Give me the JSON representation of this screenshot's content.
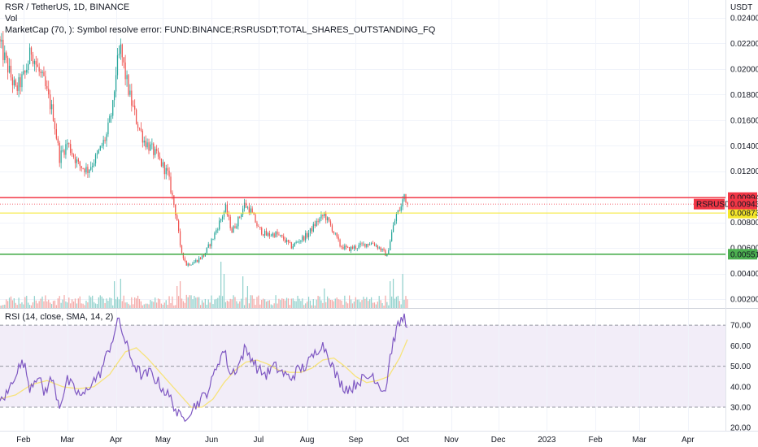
{
  "header": {
    "symbol_line": "RSR / TetherUS, 1D, BINANCE",
    "vol_label": "Vol",
    "marketcap_line": "MarketCap (70, ): Symbol resolve error: FUND:BINANCE;RSRUSDT;TOTAL_SHARES_OUTSTANDING_FQ"
  },
  "rsi_panel": {
    "label": "RSI (14, close, SMA, 14, 2)"
  },
  "colors": {
    "up": "#26a69a",
    "down": "#ef5350",
    "up_vol": "#93d2cd",
    "down_vol": "#f4a9a7",
    "resistance": "#f23645",
    "middle": "#f5e72a",
    "support": "#4caf50",
    "rsi_line": "#7e57c2",
    "rsi_ma": "#f7e37b",
    "rsi_band": "#ede7f6",
    "price_tag": "#f23645"
  },
  "chart_data": [
    {
      "type": "candlestick",
      "title": "RSR / TetherUS, 1D, BINANCE",
      "y_unit": "USDT",
      "y_scale": "linear",
      "ylim": [
        0.0013,
        0.0254
      ],
      "y_ticks": [
        "0.02400",
        "0.02200",
        "0.02000",
        "0.01800",
        "0.01600",
        "0.01400",
        "0.01200",
        "0.00800",
        "0.00600",
        "0.00400",
        "0.00200"
      ],
      "x_ticks": [
        "Feb",
        "Mar",
        "Apr",
        "May",
        "Jun",
        "Jul",
        "Aug",
        "Sep",
        "Oct",
        "Nov",
        "Dec",
        "2023",
        "Feb",
        "Mar",
        "Apr"
      ],
      "x_range": [
        "2022-01-17",
        "2023-04-25"
      ],
      "grid": true,
      "horizontal_levels": [
        {
          "label": "0.00994",
          "value": 0.00994,
          "role": "resistance"
        },
        {
          "label": "0.00873",
          "value": 0.00873,
          "role": "middle"
        },
        {
          "label": "0.00551",
          "value": 0.00551,
          "role": "support"
        }
      ],
      "last_price": {
        "name": "RSRUSDT",
        "label": "0.00943",
        "value": 0.00943
      },
      "series_close_anchors": [
        {
          "date": "2022-01-17",
          "close": 0.0219
        },
        {
          "date": "2022-01-22",
          "close": 0.0201
        },
        {
          "date": "2022-01-27",
          "close": 0.0183
        },
        {
          "date": "2022-02-02",
          "close": 0.0196
        },
        {
          "date": "2022-02-06",
          "close": 0.0215
        },
        {
          "date": "2022-02-10",
          "close": 0.02
        },
        {
          "date": "2022-02-14",
          "close": 0.0189
        },
        {
          "date": "2022-02-20",
          "close": 0.0164
        },
        {
          "date": "2022-02-24",
          "close": 0.0131
        },
        {
          "date": "2022-03-01",
          "close": 0.0142
        },
        {
          "date": "2022-03-08",
          "close": 0.0125
        },
        {
          "date": "2022-03-14",
          "close": 0.0121
        },
        {
          "date": "2022-03-20",
          "close": 0.0132
        },
        {
          "date": "2022-03-26",
          "close": 0.0148
        },
        {
          "date": "2022-03-30",
          "close": 0.017
        },
        {
          "date": "2022-04-01",
          "close": 0.0198
        },
        {
          "date": "2022-04-04",
          "close": 0.0215
        },
        {
          "date": "2022-04-07",
          "close": 0.0195
        },
        {
          "date": "2022-04-10",
          "close": 0.0178
        },
        {
          "date": "2022-04-14",
          "close": 0.016
        },
        {
          "date": "2022-04-19",
          "close": 0.0144
        },
        {
          "date": "2022-04-24",
          "close": 0.0137
        },
        {
          "date": "2022-04-29",
          "close": 0.0128
        },
        {
          "date": "2022-05-04",
          "close": 0.0118
        },
        {
          "date": "2022-05-07",
          "close": 0.01
        },
        {
          "date": "2022-05-10",
          "close": 0.0082
        },
        {
          "date": "2022-05-12",
          "close": 0.006
        },
        {
          "date": "2022-05-16",
          "close": 0.0047
        },
        {
          "date": "2022-05-21",
          "close": 0.0049
        },
        {
          "date": "2022-05-27",
          "close": 0.0054
        },
        {
          "date": "2022-06-02",
          "close": 0.0068
        },
        {
          "date": "2022-06-06",
          "close": 0.008
        },
        {
          "date": "2022-06-10",
          "close": 0.0091
        },
        {
          "date": "2022-06-14",
          "close": 0.0073
        },
        {
          "date": "2022-06-18",
          "close": 0.0082
        },
        {
          "date": "2022-06-22",
          "close": 0.0094
        },
        {
          "date": "2022-06-26",
          "close": 0.0089
        },
        {
          "date": "2022-07-01",
          "close": 0.0075
        },
        {
          "date": "2022-07-06",
          "close": 0.007
        },
        {
          "date": "2022-07-12",
          "close": 0.0071
        },
        {
          "date": "2022-07-17",
          "close": 0.0067
        },
        {
          "date": "2022-07-22",
          "close": 0.0061
        },
        {
          "date": "2022-07-27",
          "close": 0.0066
        },
        {
          "date": "2022-08-01",
          "close": 0.007
        },
        {
          "date": "2022-08-07",
          "close": 0.008
        },
        {
          "date": "2022-08-12",
          "close": 0.0086
        },
        {
          "date": "2022-08-17",
          "close": 0.0075
        },
        {
          "date": "2022-08-22",
          "close": 0.0062
        },
        {
          "date": "2022-08-27",
          "close": 0.0059
        },
        {
          "date": "2022-09-02",
          "close": 0.0061
        },
        {
          "date": "2022-09-07",
          "close": 0.0063
        },
        {
          "date": "2022-09-12",
          "close": 0.0064
        },
        {
          "date": "2022-09-17",
          "close": 0.0059
        },
        {
          "date": "2022-09-21",
          "close": 0.0054
        },
        {
          "date": "2022-09-24",
          "close": 0.0072
        },
        {
          "date": "2022-09-27",
          "close": 0.0086
        },
        {
          "date": "2022-09-30",
          "close": 0.0092
        },
        {
          "date": "2022-10-02",
          "close": 0.0102
        },
        {
          "date": "2022-10-04",
          "close": 0.00943
        }
      ]
    },
    {
      "type": "bar",
      "title": "Vol",
      "volume_spikes": [
        {
          "date": "2022-03-31",
          "relative": 0.55
        },
        {
          "date": "2022-04-04",
          "relative": 0.6
        },
        {
          "date": "2022-05-10",
          "relative": 0.45
        },
        {
          "date": "2022-05-12",
          "relative": 0.55
        },
        {
          "date": "2022-06-07",
          "relative": 0.95
        },
        {
          "date": "2022-06-09",
          "relative": 0.7
        },
        {
          "date": "2022-06-21",
          "relative": 0.65
        },
        {
          "date": "2022-06-24",
          "relative": 0.45
        },
        {
          "date": "2022-08-12",
          "relative": 0.4
        },
        {
          "date": "2022-09-23",
          "relative": 0.55
        },
        {
          "date": "2022-09-25",
          "relative": 0.6
        },
        {
          "date": "2022-10-01",
          "relative": 0.7
        }
      ]
    },
    {
      "type": "line",
      "title": "RSI (14, close, SMA, 14, 2)",
      "ylim": [
        18.5,
        78
      ],
      "y_ticks": [
        "70.00",
        "60.00",
        "50.00",
        "40.00",
        "30.00",
        "20.00"
      ],
      "band": {
        "upper": 70,
        "lower": 30,
        "middle": 50
      },
      "series": [
        {
          "name": "RSI",
          "points": [
            {
              "date": "2022-01-17",
              "value": 33
            },
            {
              "date": "2022-01-22",
              "value": 37
            },
            {
              "date": "2022-01-27",
              "value": 47
            },
            {
              "date": "2022-02-01",
              "value": 52
            },
            {
              "date": "2022-02-05",
              "value": 40
            },
            {
              "date": "2022-02-10",
              "value": 46
            },
            {
              "date": "2022-02-14",
              "value": 37
            },
            {
              "date": "2022-02-19",
              "value": 44
            },
            {
              "date": "2022-02-24",
              "value": 31
            },
            {
              "date": "2022-03-01",
              "value": 43
            },
            {
              "date": "2022-03-06",
              "value": 38
            },
            {
              "date": "2022-03-11",
              "value": 35
            },
            {
              "date": "2022-03-16",
              "value": 42
            },
            {
              "date": "2022-03-21",
              "value": 45
            },
            {
              "date": "2022-03-26",
              "value": 55
            },
            {
              "date": "2022-03-31",
              "value": 66
            },
            {
              "date": "2022-04-03",
              "value": 73
            },
            {
              "date": "2022-04-06",
              "value": 64
            },
            {
              "date": "2022-04-10",
              "value": 55
            },
            {
              "date": "2022-04-14",
              "value": 49
            },
            {
              "date": "2022-04-18",
              "value": 45
            },
            {
              "date": "2022-04-23",
              "value": 47
            },
            {
              "date": "2022-04-28",
              "value": 42
            },
            {
              "date": "2022-05-03",
              "value": 37
            },
            {
              "date": "2022-05-07",
              "value": 33
            },
            {
              "date": "2022-05-10",
              "value": 27
            },
            {
              "date": "2022-05-13",
              "value": 24
            },
            {
              "date": "2022-05-18",
              "value": 28
            },
            {
              "date": "2022-05-23",
              "value": 32
            },
            {
              "date": "2022-05-28",
              "value": 36
            },
            {
              "date": "2022-06-01",
              "value": 42
            },
            {
              "date": "2022-06-05",
              "value": 52
            },
            {
              "date": "2022-06-09",
              "value": 58
            },
            {
              "date": "2022-06-13",
              "value": 46
            },
            {
              "date": "2022-06-18",
              "value": 50
            },
            {
              "date": "2022-06-22",
              "value": 58
            },
            {
              "date": "2022-06-26",
              "value": 55
            },
            {
              "date": "2022-07-01",
              "value": 48
            },
            {
              "date": "2022-07-06",
              "value": 46
            },
            {
              "date": "2022-07-11",
              "value": 50
            },
            {
              "date": "2022-07-16",
              "value": 47
            },
            {
              "date": "2022-07-21",
              "value": 44
            },
            {
              "date": "2022-07-26",
              "value": 48
            },
            {
              "date": "2022-07-31",
              "value": 50
            },
            {
              "date": "2022-08-05",
              "value": 55
            },
            {
              "date": "2022-08-10",
              "value": 61
            },
            {
              "date": "2022-08-14",
              "value": 57
            },
            {
              "date": "2022-08-19",
              "value": 46
            },
            {
              "date": "2022-08-24",
              "value": 40
            },
            {
              "date": "2022-08-29",
              "value": 39
            },
            {
              "date": "2022-09-03",
              "value": 43
            },
            {
              "date": "2022-09-08",
              "value": 44
            },
            {
              "date": "2022-09-12",
              "value": 46
            },
            {
              "date": "2022-09-16",
              "value": 41
            },
            {
              "date": "2022-09-20",
              "value": 38
            },
            {
              "date": "2022-09-23",
              "value": 55
            },
            {
              "date": "2022-09-26",
              "value": 65
            },
            {
              "date": "2022-09-29",
              "value": 71
            },
            {
              "date": "2022-10-02",
              "value": 74
            },
            {
              "date": "2022-10-04",
              "value": 69
            }
          ]
        },
        {
          "name": "RSI-based MA",
          "points": [
            {
              "date": "2022-01-17",
              "value": 34
            },
            {
              "date": "2022-01-27",
              "value": 36
            },
            {
              "date": "2022-02-06",
              "value": 41
            },
            {
              "date": "2022-02-16",
              "value": 43
            },
            {
              "date": "2022-02-26",
              "value": 40
            },
            {
              "date": "2022-03-08",
              "value": 39
            },
            {
              "date": "2022-03-18",
              "value": 40
            },
            {
              "date": "2022-03-28",
              "value": 46
            },
            {
              "date": "2022-04-07",
              "value": 57
            },
            {
              "date": "2022-04-14",
              "value": 59
            },
            {
              "date": "2022-04-21",
              "value": 54
            },
            {
              "date": "2022-04-28",
              "value": 48
            },
            {
              "date": "2022-05-05",
              "value": 42
            },
            {
              "date": "2022-05-12",
              "value": 36
            },
            {
              "date": "2022-05-19",
              "value": 30
            },
            {
              "date": "2022-05-26",
              "value": 30
            },
            {
              "date": "2022-06-02",
              "value": 34
            },
            {
              "date": "2022-06-09",
              "value": 42
            },
            {
              "date": "2022-06-16",
              "value": 48
            },
            {
              "date": "2022-06-23",
              "value": 52
            },
            {
              "date": "2022-06-30",
              "value": 53
            },
            {
              "date": "2022-07-07",
              "value": 51
            },
            {
              "date": "2022-07-14",
              "value": 48
            },
            {
              "date": "2022-07-21",
              "value": 47
            },
            {
              "date": "2022-07-28",
              "value": 47
            },
            {
              "date": "2022-08-04",
              "value": 49
            },
            {
              "date": "2022-08-11",
              "value": 53
            },
            {
              "date": "2022-08-18",
              "value": 54
            },
            {
              "date": "2022-08-25",
              "value": 50
            },
            {
              "date": "2022-09-01",
              "value": 45
            },
            {
              "date": "2022-09-08",
              "value": 42
            },
            {
              "date": "2022-09-15",
              "value": 43
            },
            {
              "date": "2022-09-22",
              "value": 45
            },
            {
              "date": "2022-09-29",
              "value": 54
            },
            {
              "date": "2022-10-04",
              "value": 63
            }
          ]
        }
      ]
    }
  ]
}
